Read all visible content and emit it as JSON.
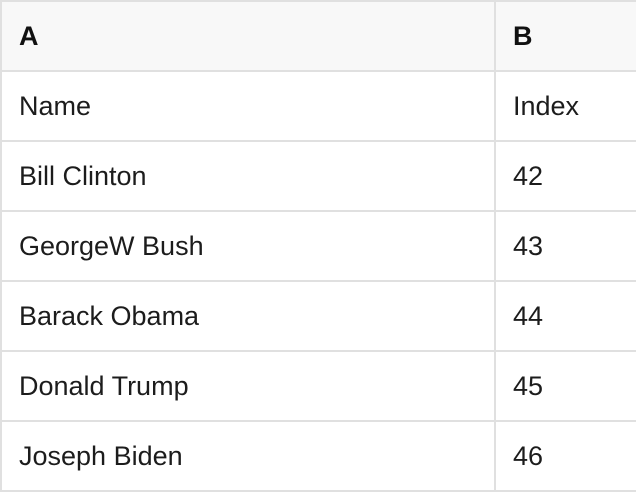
{
  "table": {
    "column_headers": [
      "A",
      "B"
    ],
    "rows": [
      [
        "Name",
        "Index"
      ],
      [
        "Bill Clinton",
        "42"
      ],
      [
        "GeorgeW Bush",
        "43"
      ],
      [
        "Barack Obama",
        "44"
      ],
      [
        "Donald Trump",
        "45"
      ],
      [
        "Joseph Biden",
        "46"
      ]
    ]
  },
  "colors": {
    "header_background": "#f8f8f8",
    "row_background": "#ffffff",
    "gridline": "#e0e0e0",
    "text": "#1c1c1c"
  }
}
